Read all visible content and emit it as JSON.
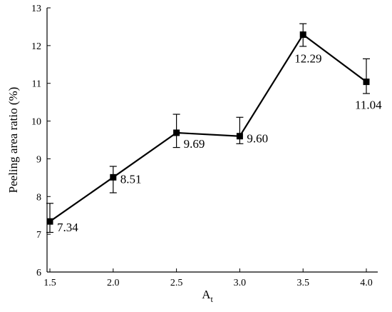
{
  "chart_data": {
    "type": "line",
    "title": "",
    "xlabel": "A",
    "xlabel_subscript": "t",
    "ylabel": "Peeling area ratio (%)",
    "x": [
      1.5,
      2.0,
      2.5,
      3.0,
      3.5,
      4.0
    ],
    "xlim": [
      1.5,
      4.0
    ],
    "ylim": [
      6,
      13
    ],
    "x_ticks": [
      "1.5",
      "2.0",
      "2.5",
      "3.0",
      "3.5",
      "4.0"
    ],
    "y_ticks": [
      "6",
      "7",
      "8",
      "9",
      "10",
      "11",
      "12",
      "13"
    ],
    "series": [
      {
        "values": [
          7.34,
          8.51,
          9.69,
          9.6,
          12.29,
          11.04
        ],
        "err_low": [
          7.05,
          8.1,
          9.3,
          9.4,
          11.98,
          10.73
        ],
        "err_high": [
          7.82,
          8.8,
          10.18,
          10.1,
          12.58,
          11.65
        ],
        "labels": [
          "7.34",
          "8.51",
          "9.69",
          "9.60",
          "12.29",
          "11.04"
        ],
        "color": "#000000",
        "marker": "square"
      }
    ],
    "grid": false,
    "legend": false
  }
}
